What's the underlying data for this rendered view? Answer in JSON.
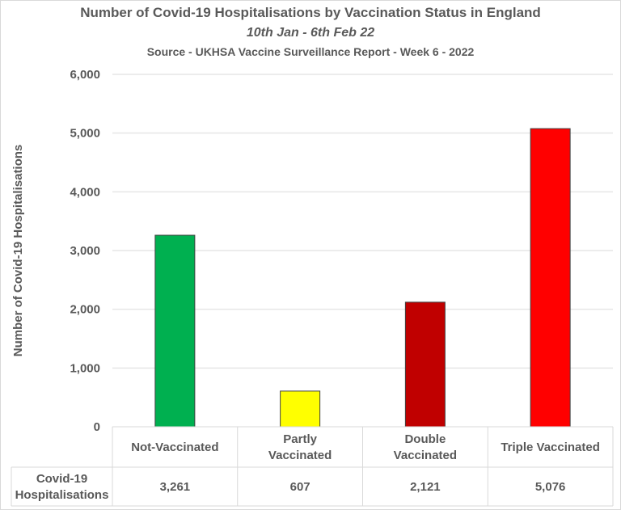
{
  "chart_data": {
    "type": "bar",
    "title": "Number of Covid-19 Hospitalisations by Vaccination Status in England",
    "subtitle": "10th Jan - 6th Feb 22",
    "source": "Source - UKHSA Vaccine Surveillance Report - Week 6 - 2022",
    "xlabel": "",
    "ylabel": "Number of Covid-19 Hospitalisations",
    "ylim": [
      0,
      6000
    ],
    "yticks": [
      0,
      1000,
      2000,
      3000,
      4000,
      5000,
      6000
    ],
    "ytick_labels": [
      "0",
      "1,000",
      "2,000",
      "3,000",
      "4,000",
      "5,000",
      "6,000"
    ],
    "grid": true,
    "categories": [
      [
        "Not-Vaccinated"
      ],
      [
        "Partly",
        "Vaccinated"
      ],
      [
        "Double",
        "Vaccinated"
      ],
      [
        "Triple Vaccinated"
      ]
    ],
    "category_names": [
      "Not-Vaccinated",
      "Partly Vaccinated",
      "Double Vaccinated",
      "Triple Vaccinated"
    ],
    "values": [
      3261,
      607,
      2121,
      5076
    ],
    "colors": [
      "#00b050",
      "#ffff00",
      "#c00000",
      "#ff0000"
    ],
    "data_table": {
      "row_label": [
        "Covid-19",
        "Hospitalisations"
      ],
      "cells": [
        "3,261",
        "607",
        "2,121",
        "5,076"
      ]
    }
  }
}
